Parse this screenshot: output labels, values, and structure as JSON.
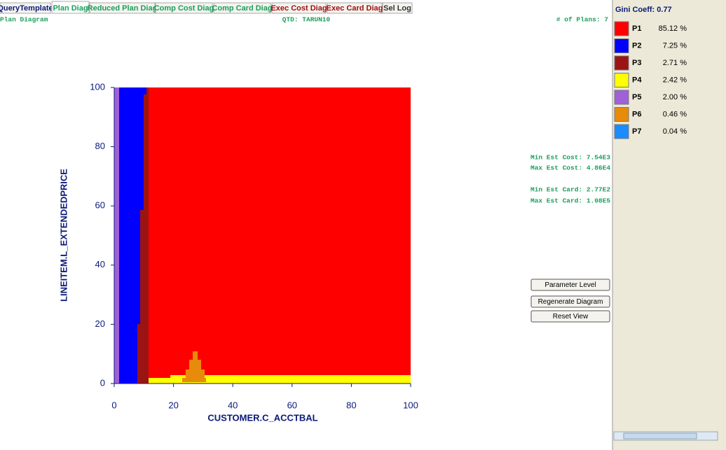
{
  "tabs": [
    "QueryTemplate",
    "Plan Diag",
    "Reduced Plan Diag",
    "Comp Cost Diag",
    "Comp Card Diag",
    "Exec Cost Diag",
    "Exec Card Diag",
    "Sel Log"
  ],
  "header": {
    "left": "Plan Diagram",
    "center": "QTD: TARUN10",
    "right": "# of Plans: 7"
  },
  "chart_data": {
    "type": "plan-diagram",
    "xlabel": "CUSTOMER.C_ACCTBAL",
    "ylabel": "LINEITEM.L_EXTENDEDPRICE",
    "xlim": [
      0,
      100
    ],
    "ylim": [
      0,
      100
    ],
    "xticks": [
      0,
      20,
      40,
      60,
      80,
      100
    ],
    "yticks": [
      0,
      20,
      40,
      60,
      80,
      100
    ]
  },
  "stats": [
    "Min Est Cost: 7.54E3",
    "Max Est Cost: 4.86E4",
    "Min Est Card: 2.77E2",
    "Max Est Card: 1.08E5"
  ],
  "buttons": [
    "Parameter Level",
    "Regenerate Diagram",
    "Reset View"
  ],
  "side": {
    "title": "Gini Coeff: 0.77",
    "plans": [
      {
        "name": "P1",
        "color": "#ff0000",
        "share": "85.12 %"
      },
      {
        "name": "P2",
        "color": "#0000ff",
        "share": "7.25 %"
      },
      {
        "name": "P3",
        "color": "#9b1414",
        "share": "2.71 %"
      },
      {
        "name": "P4",
        "color": "#ffff00",
        "share": "2.42 %"
      },
      {
        "name": "P5",
        "color": "#a060d8",
        "share": "2.00 %"
      },
      {
        "name": "P6",
        "color": "#e88a0a",
        "share": "0.46 %"
      },
      {
        "name": "P7",
        "color": "#1a8cff",
        "share": "0.04 %"
      }
    ]
  }
}
